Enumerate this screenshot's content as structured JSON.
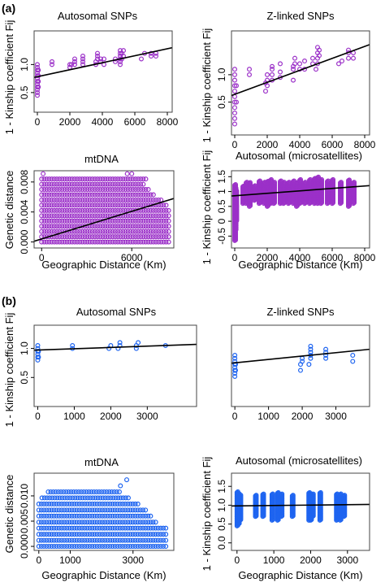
{
  "panel_labels": [
    "(a)",
    "(b)"
  ],
  "colors": {
    "purple": "#9b30c8",
    "blue": "#1e64f0",
    "line": "#000000",
    "frame": "#444444"
  },
  "chart_data": [
    {
      "id": "a1",
      "type": "scatter",
      "title": "Autosomal SNPs",
      "xlabel": "",
      "ylabel": "1 - Kinship coefficient Fij",
      "xlim": [
        -200,
        8300
      ],
      "ylim": [
        0.15,
        1.6
      ],
      "xticks": [
        0,
        2000,
        4000,
        6000,
        8000
      ],
      "xtick_labels": [
        "0",
        "2000",
        "4000",
        "6000",
        "8000"
      ],
      "yticks": [
        0.5,
        1.0
      ],
      "ytick_labels": [
        "0.5",
        "1.0"
      ],
      "color": "purple",
      "points": [
        [
          0,
          0.45
        ],
        [
          0,
          0.5
        ],
        [
          0,
          0.55
        ],
        [
          0,
          0.6
        ],
        [
          0,
          0.65
        ],
        [
          0,
          0.7
        ],
        [
          0,
          0.75
        ],
        [
          0,
          0.8
        ],
        [
          0,
          0.85
        ],
        [
          0,
          0.9
        ],
        [
          0,
          0.95
        ],
        [
          0,
          1.0
        ],
        [
          60,
          0.6
        ],
        [
          60,
          0.7
        ],
        [
          60,
          0.8
        ],
        [
          60,
          0.9
        ],
        [
          900,
          1.0
        ],
        [
          900,
          1.05
        ],
        [
          2000,
          0.95
        ],
        [
          2000,
          1.0
        ],
        [
          2100,
          1.0
        ],
        [
          2300,
          1.0
        ],
        [
          2300,
          1.05
        ],
        [
          2300,
          1.1
        ],
        [
          2800,
          1.0
        ],
        [
          2800,
          1.05
        ],
        [
          2800,
          1.1
        ],
        [
          2800,
          1.15
        ],
        [
          3600,
          1.0
        ],
        [
          3600,
          1.05
        ],
        [
          3700,
          1.1
        ],
        [
          3700,
          1.15
        ],
        [
          3700,
          1.2
        ],
        [
          3900,
          1.05
        ],
        [
          3900,
          1.1
        ],
        [
          4100,
          1.0
        ],
        [
          4100,
          1.1
        ],
        [
          4800,
          1.05
        ],
        [
          4800,
          1.1
        ],
        [
          5100,
          1.0
        ],
        [
          5100,
          1.05
        ],
        [
          5100,
          1.1
        ],
        [
          5100,
          1.15
        ],
        [
          5100,
          1.2
        ],
        [
          5100,
          1.25
        ],
        [
          5200,
          1.1
        ],
        [
          5200,
          1.2
        ],
        [
          5300,
          1.15
        ],
        [
          5300,
          1.25
        ],
        [
          6400,
          1.1
        ],
        [
          6600,
          1.2
        ],
        [
          7000,
          1.15
        ],
        [
          7000,
          1.2
        ],
        [
          7300,
          1.15
        ],
        [
          7300,
          1.2
        ]
      ],
      "fit": [
        [
          -200,
          0.77
        ],
        [
          8300,
          1.3
        ]
      ]
    },
    {
      "id": "a2",
      "type": "scatter",
      "title": "Z-linked SNPs",
      "xlabel": "",
      "ylabel": "1 - Kinship coefficient Fij",
      "xlim": [
        -200,
        8300
      ],
      "ylim": [
        -0.1,
        1.8
      ],
      "xticks": [
        0,
        2000,
        4000,
        6000,
        8000
      ],
      "xtick_labels": [
        "0",
        "2000",
        "4000",
        "6000",
        "8000"
      ],
      "yticks": [
        0.5,
        1.0
      ],
      "ytick_labels": [
        "0.5",
        "1.0"
      ],
      "color": "purple",
      "points": [
        [
          0,
          0.1
        ],
        [
          0,
          0.2
        ],
        [
          0,
          0.3
        ],
        [
          0,
          0.4
        ],
        [
          0,
          0.5
        ],
        [
          0,
          0.6
        ],
        [
          0,
          0.7
        ],
        [
          0,
          0.8
        ],
        [
          0,
          0.9
        ],
        [
          0,
          1.0
        ],
        [
          0,
          1.1
        ],
        [
          100,
          0.5
        ],
        [
          100,
          0.8
        ],
        [
          900,
          1.0
        ],
        [
          900,
          1.1
        ],
        [
          1900,
          0.7
        ],
        [
          1900,
          0.85
        ],
        [
          2000,
          0.8
        ],
        [
          2000,
          0.9
        ],
        [
          2000,
          1.0
        ],
        [
          2300,
          0.9
        ],
        [
          2300,
          1.0
        ],
        [
          2300,
          1.1
        ],
        [
          2300,
          1.15
        ],
        [
          2800,
          0.95
        ],
        [
          2800,
          1.05
        ],
        [
          2800,
          1.2
        ],
        [
          3600,
          0.9
        ],
        [
          3600,
          1.1
        ],
        [
          3600,
          1.15
        ],
        [
          3700,
          1.2
        ],
        [
          3700,
          1.3
        ],
        [
          4000,
          1.1
        ],
        [
          4000,
          1.2
        ],
        [
          4300,
          1.1
        ],
        [
          4300,
          1.25
        ],
        [
          4800,
          1.2
        ],
        [
          4800,
          1.3
        ],
        [
          5000,
          1.1
        ],
        [
          5100,
          1.2
        ],
        [
          5100,
          1.3
        ],
        [
          5100,
          1.4
        ],
        [
          5100,
          1.5
        ],
        [
          5200,
          1.35
        ],
        [
          5200,
          1.45
        ],
        [
          6400,
          1.2
        ],
        [
          6600,
          1.25
        ],
        [
          7000,
          1.3
        ],
        [
          7000,
          1.4
        ],
        [
          7000,
          1.45
        ],
        [
          7300,
          1.3
        ],
        [
          7300,
          1.4
        ]
      ],
      "fit": [
        [
          -200,
          0.62
        ],
        [
          8300,
          1.55
        ]
      ]
    },
    {
      "id": "a3",
      "type": "scatter",
      "title": "mtDNA",
      "xlabel": "Geographic Distance (Km)",
      "ylabel": "Genetic distance",
      "xlim": [
        -500,
        8800
      ],
      "ylim": [
        -0.0008,
        0.0095
      ],
      "xticks": [
        0,
        6000
      ],
      "xtick_labels": [
        "0",
        "6000"
      ],
      "yticks": [
        0.0,
        0.004,
        0.008
      ],
      "ytick_labels": [
        "0.000",
        "0.004",
        "0.008"
      ],
      "color": "purple",
      "grid_rows": [
        {
          "y": 0.0,
          "x0": 0,
          "x1": 8500
        },
        {
          "y": 0.0007,
          "x0": 0,
          "x1": 8500
        },
        {
          "y": 0.0014,
          "x0": 0,
          "x1": 8500
        },
        {
          "y": 0.0021,
          "x0": 0,
          "x1": 8500
        },
        {
          "y": 0.0028,
          "x0": 0,
          "x1": 8500
        },
        {
          "y": 0.0035,
          "x0": 0,
          "x1": 8500
        },
        {
          "y": 0.0042,
          "x0": 0,
          "x1": 8500
        },
        {
          "y": 0.0049,
          "x0": 0,
          "x1": 8300
        },
        {
          "y": 0.0056,
          "x0": 0,
          "x1": 8000
        },
        {
          "y": 0.0063,
          "x0": 0,
          "x1": 7600
        },
        {
          "y": 0.007,
          "x0": 0,
          "x1": 7200
        },
        {
          "y": 0.0077,
          "x0": 0,
          "x1": 6800
        },
        {
          "y": 0.0084,
          "x0": 0,
          "x1": 7000
        }
      ],
      "extra_points": [
        [
          100,
          0.0091
        ],
        [
          5700,
          0.0091
        ],
        [
          6000,
          0.0091
        ]
      ],
      "fit": [
        [
          -500,
          0.0001
        ],
        [
          8800,
          0.0058
        ]
      ]
    },
    {
      "id": "a4",
      "type": "scatter",
      "title": "Autosomal (microsatellites)",
      "xlabel": "Geographic Distance (Km)",
      "ylabel": "1 - Kinship coefficient Fij",
      "xlim": [
        -200,
        8300
      ],
      "ylim": [
        -0.9,
        1.7
      ],
      "xticks": [
        0,
        2000,
        4000,
        6000,
        8000
      ],
      "xtick_labels": [
        "0",
        "2000",
        "4000",
        "6000",
        "8000"
      ],
      "yticks": [
        -0.5,
        0.0,
        0.5,
        1.0,
        1.5
      ],
      "ytick_labels": [
        "-0.5",
        "0",
        "0.5",
        "1",
        "1.5"
      ],
      "color": "purple",
      "bands": [
        {
          "x": 0,
          "y0": -0.65,
          "y1": 1.25
        },
        {
          "x": 30,
          "y0": -0.3,
          "y1": 1.1
        },
        {
          "x": 70,
          "y0": 0.0,
          "y1": 1.0
        },
        {
          "x": 500,
          "y0": 0.6,
          "y1": 1.2
        },
        {
          "x": 700,
          "y0": 0.6,
          "y1": 1.3
        },
        {
          "x": 900,
          "y0": 0.5,
          "y1": 1.3
        },
        {
          "x": 1200,
          "y0": 0.7,
          "y1": 1.2
        },
        {
          "x": 1500,
          "y0": 0.6,
          "y1": 1.35
        },
        {
          "x": 1800,
          "y0": 0.6,
          "y1": 1.3
        },
        {
          "x": 2000,
          "y0": 0.5,
          "y1": 1.35
        },
        {
          "x": 2200,
          "y0": 0.6,
          "y1": 1.4
        },
        {
          "x": 2400,
          "y0": 0.6,
          "y1": 1.3
        },
        {
          "x": 2800,
          "y0": 0.6,
          "y1": 1.35
        },
        {
          "x": 3000,
          "y0": 0.6,
          "y1": 1.3
        },
        {
          "x": 3300,
          "y0": 0.6,
          "y1": 1.3
        },
        {
          "x": 3600,
          "y0": 0.6,
          "y1": 1.35
        },
        {
          "x": 3800,
          "y0": 0.5,
          "y1": 1.3
        },
        {
          "x": 4000,
          "y0": 0.6,
          "y1": 1.4
        },
        {
          "x": 4300,
          "y0": 0.6,
          "y1": 1.3
        },
        {
          "x": 4600,
          "y0": 0.6,
          "y1": 1.4
        },
        {
          "x": 4900,
          "y0": 0.6,
          "y1": 1.45
        },
        {
          "x": 5100,
          "y0": 0.6,
          "y1": 1.5
        },
        {
          "x": 5300,
          "y0": 0.6,
          "y1": 1.4
        },
        {
          "x": 5700,
          "y0": 0.6,
          "y1": 1.35
        },
        {
          "x": 6000,
          "y0": 0.6,
          "y1": 1.4
        },
        {
          "x": 6500,
          "y0": 0.6,
          "y1": 1.3
        },
        {
          "x": 7000,
          "y0": 0.5,
          "y1": 1.4
        },
        {
          "x": 7300,
          "y0": 0.6,
          "y1": 1.3
        }
      ],
      "fit": [
        [
          -200,
          0.85
        ],
        [
          8300,
          1.2
        ]
      ]
    },
    {
      "id": "b1",
      "type": "scatter",
      "title": "Autosomal SNPs",
      "xlabel": "",
      "ylabel": "1 - Kinship coefficient Fij",
      "xlim": [
        -100,
        4350
      ],
      "ylim": [
        0.0,
        1.4
      ],
      "xticks": [
        0,
        1000,
        2000,
        3000
      ],
      "xtick_labels": [
        "0",
        "1000",
        "2000",
        "3000"
      ],
      "yticks": [
        0.5,
        1.0
      ],
      "ytick_labels": [
        "0.5",
        "1.0"
      ],
      "color": "blue",
      "points": [
        [
          0,
          0.8
        ],
        [
          0,
          0.85
        ],
        [
          0,
          0.9
        ],
        [
          0,
          0.95
        ],
        [
          0,
          1.0
        ],
        [
          0,
          1.05
        ],
        [
          20,
          0.85
        ],
        [
          20,
          0.95
        ],
        [
          950,
          1.0
        ],
        [
          950,
          1.05
        ],
        [
          1950,
          1.0
        ],
        [
          2000,
          1.05
        ],
        [
          2200,
          1.0
        ],
        [
          2250,
          1.05
        ],
        [
          2250,
          1.1
        ],
        [
          2700,
          1.0
        ],
        [
          2700,
          1.05
        ],
        [
          2750,
          1.1
        ],
        [
          3500,
          1.05
        ]
      ],
      "fit": [
        [
          -100,
          0.97
        ],
        [
          4350,
          1.07
        ]
      ]
    },
    {
      "id": "b2",
      "type": "scatter",
      "title": "Z-linked SNPs",
      "xlabel": "",
      "ylabel": "",
      "xlim": [
        -100,
        4000
      ],
      "ylim": [
        0.2,
        1.55
      ],
      "xticks": [
        0,
        1000,
        2000,
        3000
      ],
      "xtick_labels": [
        "0",
        "1000",
        "2000",
        "3000"
      ],
      "yticks": [],
      "ytick_labels": [],
      "color": "blue",
      "points": [
        [
          0,
          0.7
        ],
        [
          0,
          0.75
        ],
        [
          0,
          0.8
        ],
        [
          0,
          0.85
        ],
        [
          0,
          0.9
        ],
        [
          0,
          0.95
        ],
        [
          0,
          1.0
        ],
        [
          0,
          1.05
        ],
        [
          20,
          0.8
        ],
        [
          20,
          0.9
        ],
        [
          1950,
          0.8
        ],
        [
          1950,
          0.9
        ],
        [
          2000,
          0.95
        ],
        [
          2000,
          1.0
        ],
        [
          2200,
          0.9
        ],
        [
          2250,
          1.0
        ],
        [
          2250,
          1.05
        ],
        [
          2250,
          1.1
        ],
        [
          2250,
          1.15
        ],
        [
          2250,
          1.2
        ],
        [
          2700,
          1.0
        ],
        [
          2700,
          1.05
        ],
        [
          2700,
          1.1
        ],
        [
          2700,
          1.15
        ],
        [
          3500,
          0.95
        ],
        [
          3500,
          1.05
        ]
      ],
      "fit": [
        [
          -100,
          0.92
        ],
        [
          4000,
          1.15
        ]
      ]
    },
    {
      "id": "b3",
      "type": "scatter",
      "title": "mtDNA",
      "xlabel": "Geographic Distance (Km)",
      "ylabel": "Genetic distance",
      "xlim": [
        -150,
        4300
      ],
      "ylim": [
        -0.0008,
        0.0145
      ],
      "xticks": [
        0,
        1000,
        3000
      ],
      "xtick_labels": [
        "0",
        "1000",
        "3000"
      ],
      "yticks": [
        0.0,
        0.005,
        0.01
      ],
      "ytick_labels": [
        "0.000",
        "0.005",
        "0.010"
      ],
      "color": "blue",
      "grid_rows": [
        {
          "y": 0.0,
          "x0": 0,
          "x1": 4100
        },
        {
          "y": 0.0012,
          "x0": 0,
          "x1": 4100
        },
        {
          "y": 0.0024,
          "x0": 0,
          "x1": 4100
        },
        {
          "y": 0.0036,
          "x0": 0,
          "x1": 4100
        },
        {
          "y": 0.0048,
          "x0": 0,
          "x1": 3800
        },
        {
          "y": 0.006,
          "x0": 0,
          "x1": 3600
        },
        {
          "y": 0.0072,
          "x0": 0,
          "x1": 3400
        },
        {
          "y": 0.0084,
          "x0": 0,
          "x1": 3200
        },
        {
          "y": 0.0096,
          "x0": 100,
          "x1": 2900
        },
        {
          "y": 0.0108,
          "x0": 300,
          "x1": 2600
        }
      ],
      "extra_points": [
        [
          2600,
          0.012
        ],
        [
          2800,
          0.0132
        ]
      ],
      "fit": null
    },
    {
      "id": "b4",
      "type": "scatter",
      "title": "Autosomal (microsatellites)",
      "xlabel": "Geographic Distance (Km)",
      "ylabel": "1 - Kinship coefficient Fij",
      "xlim": [
        -150,
        3600
      ],
      "ylim": [
        -0.2,
        1.85
      ],
      "xticks": [
        0,
        1000,
        2000,
        3000
      ],
      "xtick_labels": [
        "0",
        "1000",
        "2000",
        "3000"
      ],
      "yticks": [
        0.0,
        0.5,
        1.0,
        1.5
      ],
      "ytick_labels": [
        "0.0",
        "0.5",
        "1.0",
        "1.5"
      ],
      "color": "blue",
      "bands": [
        {
          "x": 0,
          "y0": 0.45,
          "y1": 1.35
        },
        {
          "x": 40,
          "y0": 0.5,
          "y1": 1.3
        },
        {
          "x": 80,
          "y0": 0.6,
          "y1": 1.25
        },
        {
          "x": 500,
          "y0": 0.7,
          "y1": 1.25
        },
        {
          "x": 700,
          "y0": 0.7,
          "y1": 1.3
        },
        {
          "x": 950,
          "y0": 0.6,
          "y1": 1.3
        },
        {
          "x": 1100,
          "y0": 0.6,
          "y1": 1.35
        },
        {
          "x": 1200,
          "y0": 0.7,
          "y1": 1.3
        },
        {
          "x": 1500,
          "y0": 0.7,
          "y1": 1.25
        },
        {
          "x": 1950,
          "y0": 0.6,
          "y1": 1.35
        },
        {
          "x": 2000,
          "y0": 0.6,
          "y1": 1.3
        },
        {
          "x": 2050,
          "y0": 0.7,
          "y1": 1.3
        },
        {
          "x": 2250,
          "y0": 0.6,
          "y1": 1.35
        },
        {
          "x": 2700,
          "y0": 0.6,
          "y1": 1.3
        },
        {
          "x": 2800,
          "y0": 0.6,
          "y1": 1.3
        },
        {
          "x": 2900,
          "y0": 0.7,
          "y1": 1.25
        }
      ],
      "fit": [
        [
          -150,
          0.98
        ],
        [
          3600,
          1.02
        ]
      ]
    }
  ]
}
